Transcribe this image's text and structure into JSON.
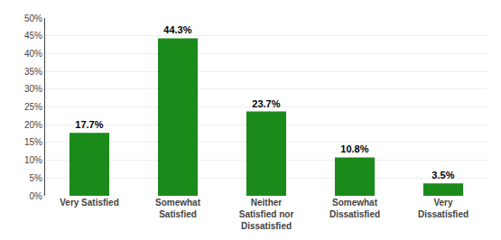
{
  "chart_data": {
    "type": "bar",
    "categories": [
      "Very Satisfied",
      "Somewhat\nSatisfied",
      "Neither\nSatisfied nor\nDissatisfied",
      "Somewhat\nDissatisfied",
      "Very\nDissatisfied"
    ],
    "values": [
      17.7,
      44.3,
      23.7,
      10.8,
      3.5
    ],
    "value_labels": [
      "17.7%",
      "44.3%",
      "23.7%",
      "10.8%",
      "3.5%"
    ],
    "data_labels": true,
    "color": "#1a8a1a",
    "ylim": [
      0,
      50
    ],
    "yticks": [
      {
        "value": 0,
        "label": "0%"
      },
      {
        "value": 5,
        "label": "5%"
      },
      {
        "value": 10,
        "label": "10%"
      },
      {
        "value": 15,
        "label": "15%"
      },
      {
        "value": 20,
        "label": "20%"
      },
      {
        "value": 25,
        "label": "25%"
      },
      {
        "value": 30,
        "label": "30%"
      },
      {
        "value": 35,
        "label": "35%"
      },
      {
        "value": 40,
        "label": "40%"
      },
      {
        "value": 45,
        "label": "45%"
      },
      {
        "value": 50,
        "label": "50%"
      }
    ],
    "grid": true
  }
}
